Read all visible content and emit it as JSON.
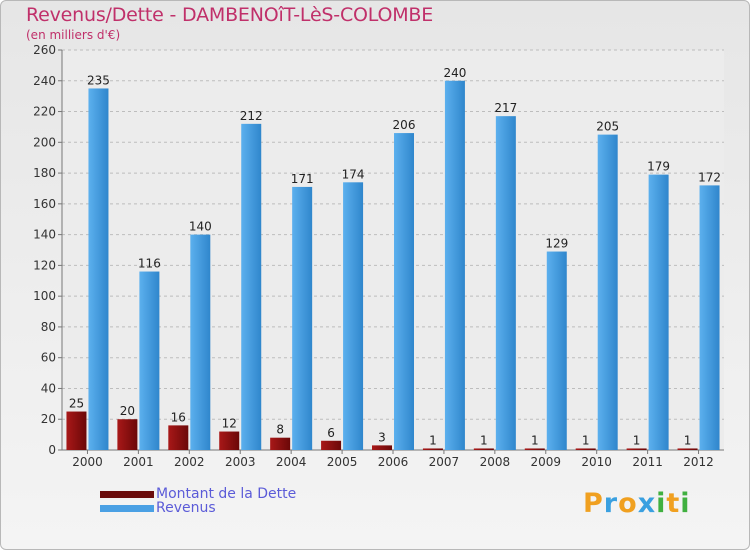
{
  "header": {
    "title": "Revenus/Dette - DAMBENOîT-LèS-COLOMBE",
    "subtitle": "(en milliers d'€)"
  },
  "chart_data": {
    "type": "bar",
    "categories": [
      "2000",
      "2001",
      "2002",
      "2003",
      "2004",
      "2005",
      "2006",
      "2007",
      "2008",
      "2009",
      "2010",
      "2011",
      "2012"
    ],
    "series": [
      {
        "name": "Montant de la Dette",
        "values": [
          25,
          20,
          16,
          12,
          8,
          6,
          3,
          1,
          1,
          1,
          1,
          1,
          1
        ],
        "color": "#8b1010"
      },
      {
        "name": "Revenus",
        "values": [
          235,
          116,
          140,
          212,
          171,
          174,
          206,
          240,
          217,
          129,
          205,
          179,
          172
        ],
        "color": "#4aa0e4"
      }
    ],
    "yticks": [
      0,
      20,
      40,
      60,
      80,
      100,
      120,
      140,
      160,
      180,
      200,
      220,
      240,
      260
    ],
    "ylim": [
      0,
      260
    ],
    "grid": true,
    "legend_position": "bottom-left"
  },
  "legend": {
    "items": [
      {
        "label": "Montant de la Dette",
        "color": "#6b0c0c"
      },
      {
        "label": "Revenus",
        "color": "#4aa0e4"
      }
    ]
  },
  "logo": {
    "letters": [
      "P",
      "r",
      "o",
      "x",
      "i",
      "t",
      "i"
    ],
    "colors": [
      "#f0a020",
      "#3aa0e0",
      "#f0a020",
      "#3aa0e0",
      "#40b040",
      "#f0a020",
      "#40b040"
    ]
  }
}
